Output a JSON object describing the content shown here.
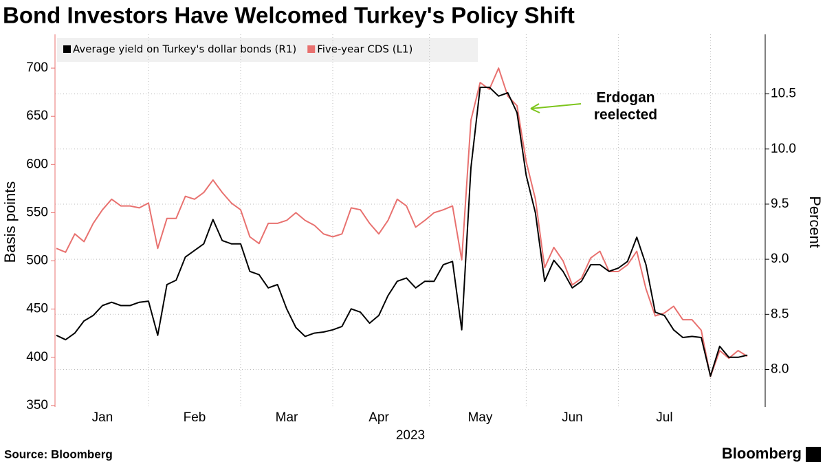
{
  "chart_data": {
    "type": "line",
    "title": "Bond Investors Have Welcomed Turkey's Policy Shift",
    "source": "Source: Bloomberg",
    "brand": "Bloomberg",
    "xlabel": "2023",
    "ylabel": "Basis points",
    "y2label": "Percent",
    "annotation": [
      "Erdogan",
      "reelected"
    ],
    "annotation_color": "#7dc51c",
    "categories": [
      null,
      null,
      null,
      null,
      null,
      "Jan",
      null,
      null,
      null,
      null,
      null,
      null,
      null,
      null,
      null,
      "Feb",
      null,
      null,
      null,
      null,
      null,
      null,
      null,
      null,
      null,
      "Mar",
      null,
      null,
      null,
      null,
      null,
      null,
      null,
      null,
      null,
      "Apr",
      null,
      null,
      null,
      null,
      null,
      null,
      null,
      null,
      null,
      null,
      "May",
      null,
      null,
      null,
      null,
      null,
      null,
      null,
      null,
      null,
      "Jun",
      null,
      null,
      null,
      null,
      null,
      null,
      null,
      null,
      null,
      "Jul",
      null,
      null,
      null,
      null,
      null,
      null,
      null,
      null,
      null
    ],
    "series": [
      {
        "name": "Average yield on Turkey's dollar bonds (R1)",
        "color": "#000000",
        "axis": "y2",
        "values": [
          8.31,
          8.27,
          8.33,
          8.44,
          8.49,
          8.58,
          8.61,
          8.58,
          8.58,
          8.61,
          8.62,
          8.31,
          8.77,
          8.81,
          9.02,
          9.08,
          9.14,
          9.36,
          9.17,
          9.14,
          9.14,
          8.89,
          8.86,
          8.74,
          8.77,
          8.55,
          8.38,
          8.3,
          8.33,
          8.34,
          8.36,
          8.39,
          8.55,
          8.52,
          8.42,
          8.49,
          8.67,
          8.8,
          8.83,
          8.74,
          8.8,
          8.8,
          8.95,
          8.98,
          8.36,
          9.83,
          10.56,
          10.56,
          10.48,
          10.51,
          10.33,
          9.76,
          9.42,
          8.8,
          8.99,
          8.89,
          8.74,
          8.8,
          8.95,
          8.95,
          8.89,
          8.92,
          8.98,
          9.2,
          8.95,
          8.52,
          8.49,
          8.36,
          8.29,
          8.3,
          8.29,
          7.94,
          8.21,
          8.11,
          8.11,
          8.13
        ]
      },
      {
        "name": "Five-year CDS (L1)",
        "color": "#e8716f",
        "axis": "y",
        "values": [
          513,
          509,
          528,
          520,
          539,
          553,
          564,
          557,
          557,
          555,
          560,
          513,
          544,
          544,
          567,
          564,
          571,
          584,
          571,
          560,
          553,
          525,
          518,
          539,
          539,
          542,
          550,
          542,
          537,
          528,
          525,
          528,
          555,
          553,
          539,
          528,
          542,
          564,
          557,
          535,
          542,
          550,
          553,
          557,
          501,
          646,
          685,
          678,
          700,
          671,
          661,
          603,
          564,
          493,
          514,
          500,
          475,
          482,
          503,
          510,
          489,
          489,
          496,
          510,
          471,
          443,
          446,
          453,
          439,
          439,
          428,
          380,
          407,
          399,
          407,
          401
        ]
      }
    ],
    "ylim": [
      348.5,
      735
    ],
    "yticks": [
      350,
      400,
      450,
      500,
      550,
      600,
      650,
      700
    ],
    "y2lim": [
      7.66,
      11.04
    ],
    "y2ticks": [
      {
        "value": 8,
        "label": "8.0"
      },
      8.5,
      {
        "value": 9,
        "label": "9.0"
      },
      9.5,
      {
        "value": 10,
        "label": "10.0"
      },
      10.5
    ],
    "grid": true
  }
}
